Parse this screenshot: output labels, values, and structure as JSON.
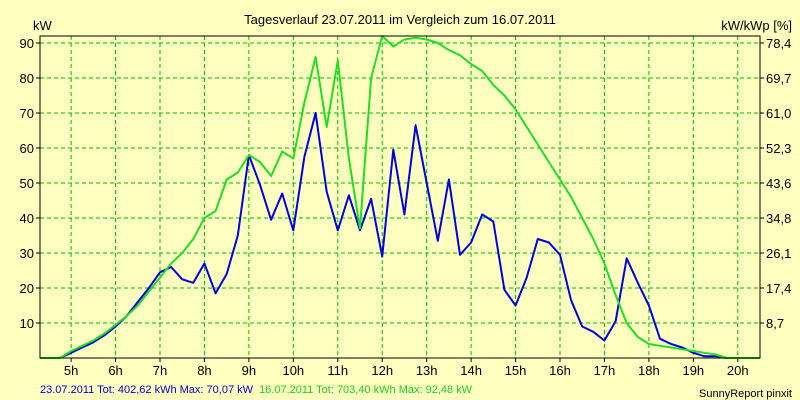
{
  "chart_data": {
    "type": "line",
    "title": "Tagesverlauf 23.07.2011 im Vergleich zum 16.07.2011",
    "ylabel_left": "kW",
    "ylabel_right": "kW/kWp [%]",
    "x_ticks": [
      "5h",
      "6h",
      "7h",
      "8h",
      "9h",
      "10h",
      "11h",
      "12h",
      "13h",
      "14h",
      "15h",
      "16h",
      "17h",
      "18h",
      "19h",
      "20h"
    ],
    "x_range": [
      4.3,
      20.5
    ],
    "y_ticks_left": [
      "10",
      "20",
      "30",
      "40",
      "50",
      "60",
      "70",
      "80",
      "90"
    ],
    "y_ticks_right": [
      "8,7",
      "17,4",
      "26,1",
      "34,8",
      "43,6",
      "52,3",
      "61,0",
      "69,7",
      "78,4"
    ],
    "ylim": [
      0,
      92
    ],
    "grid": true,
    "series": [
      {
        "name": "23.07.2011",
        "color": "#0000dd",
        "x": [
          4.3,
          4.75,
          5.0,
          5.25,
          5.5,
          5.75,
          6.0,
          6.25,
          6.5,
          6.75,
          7.0,
          7.25,
          7.5,
          7.75,
          8.0,
          8.25,
          8.5,
          8.75,
          9.0,
          9.25,
          9.5,
          9.75,
          10.0,
          10.25,
          10.5,
          10.75,
          11.0,
          11.25,
          11.5,
          11.75,
          12.0,
          12.25,
          12.5,
          12.75,
          13.0,
          13.25,
          13.5,
          13.75,
          14.0,
          14.25,
          14.5,
          14.75,
          15.0,
          15.25,
          15.5,
          15.75,
          16.0,
          16.25,
          16.5,
          16.75,
          17.0,
          17.25,
          17.5,
          17.75,
          18.0,
          18.25,
          18.5,
          18.75,
          19.0,
          19.25,
          19.5,
          19.75,
          20.0,
          20.5
        ],
        "values": [
          0,
          0,
          1.5,
          3,
          4.5,
          6.5,
          9,
          12,
          16,
          20,
          24.5,
          26,
          22.5,
          21.5,
          27,
          18.5,
          24,
          35,
          58,
          49.5,
          39.5,
          47,
          36.5,
          57.5,
          70,
          47.5,
          36.5,
          46.5,
          36.5,
          45.5,
          29,
          59.5,
          41,
          66.5,
          50,
          33.5,
          51,
          29.5,
          33,
          41,
          39,
          19.5,
          15,
          23,
          34,
          33,
          29.5,
          16.5,
          9,
          7.5,
          5,
          10.5,
          28.5,
          21.5,
          15,
          5.5,
          4,
          3,
          1.5,
          0.5,
          0.5,
          0,
          0,
          0
        ]
      },
      {
        "name": "16.07.2011",
        "color": "#22dd22",
        "x": [
          4.3,
          4.75,
          5.0,
          5.25,
          5.5,
          5.75,
          6.0,
          6.25,
          6.5,
          6.75,
          7.0,
          7.25,
          7.5,
          7.75,
          8.0,
          8.25,
          8.5,
          8.75,
          9.0,
          9.25,
          9.5,
          9.75,
          10.0,
          10.25,
          10.5,
          10.75,
          11.0,
          11.25,
          11.5,
          11.75,
          12.0,
          12.25,
          12.5,
          12.75,
          13.0,
          13.25,
          13.5,
          13.75,
          14.0,
          14.25,
          14.5,
          14.75,
          15.0,
          15.25,
          15.5,
          15.75,
          16.0,
          16.25,
          16.5,
          16.75,
          17.0,
          17.25,
          17.5,
          17.75,
          18.0,
          18.25,
          18.5,
          18.75,
          19.0,
          19.25,
          19.5,
          19.75,
          20.0,
          20.5
        ],
        "values": [
          0,
          0,
          2,
          3.5,
          5,
          7,
          9.5,
          12,
          15,
          19,
          23,
          27,
          30,
          34,
          40,
          42,
          51,
          53,
          58,
          56,
          52,
          59,
          57,
          73,
          86,
          66,
          85,
          57,
          37,
          80,
          92,
          89,
          91,
          91.5,
          91,
          90,
          88,
          86.5,
          84,
          82,
          78,
          75,
          71,
          66,
          61,
          56,
          51,
          46,
          40,
          34,
          27,
          18,
          10,
          6,
          4,
          3.5,
          3,
          2.5,
          2,
          1.5,
          1,
          0,
          0,
          0
        ]
      }
    ]
  },
  "footer": {
    "series1_info": "23.07.2011 Tot: 402,62 kWh Max: 70,07 kW",
    "series2_info": "16.07.2011 Tot: 703,40 kWh Max: 92,48 kW",
    "credit": "SunnyReport pinxit"
  }
}
